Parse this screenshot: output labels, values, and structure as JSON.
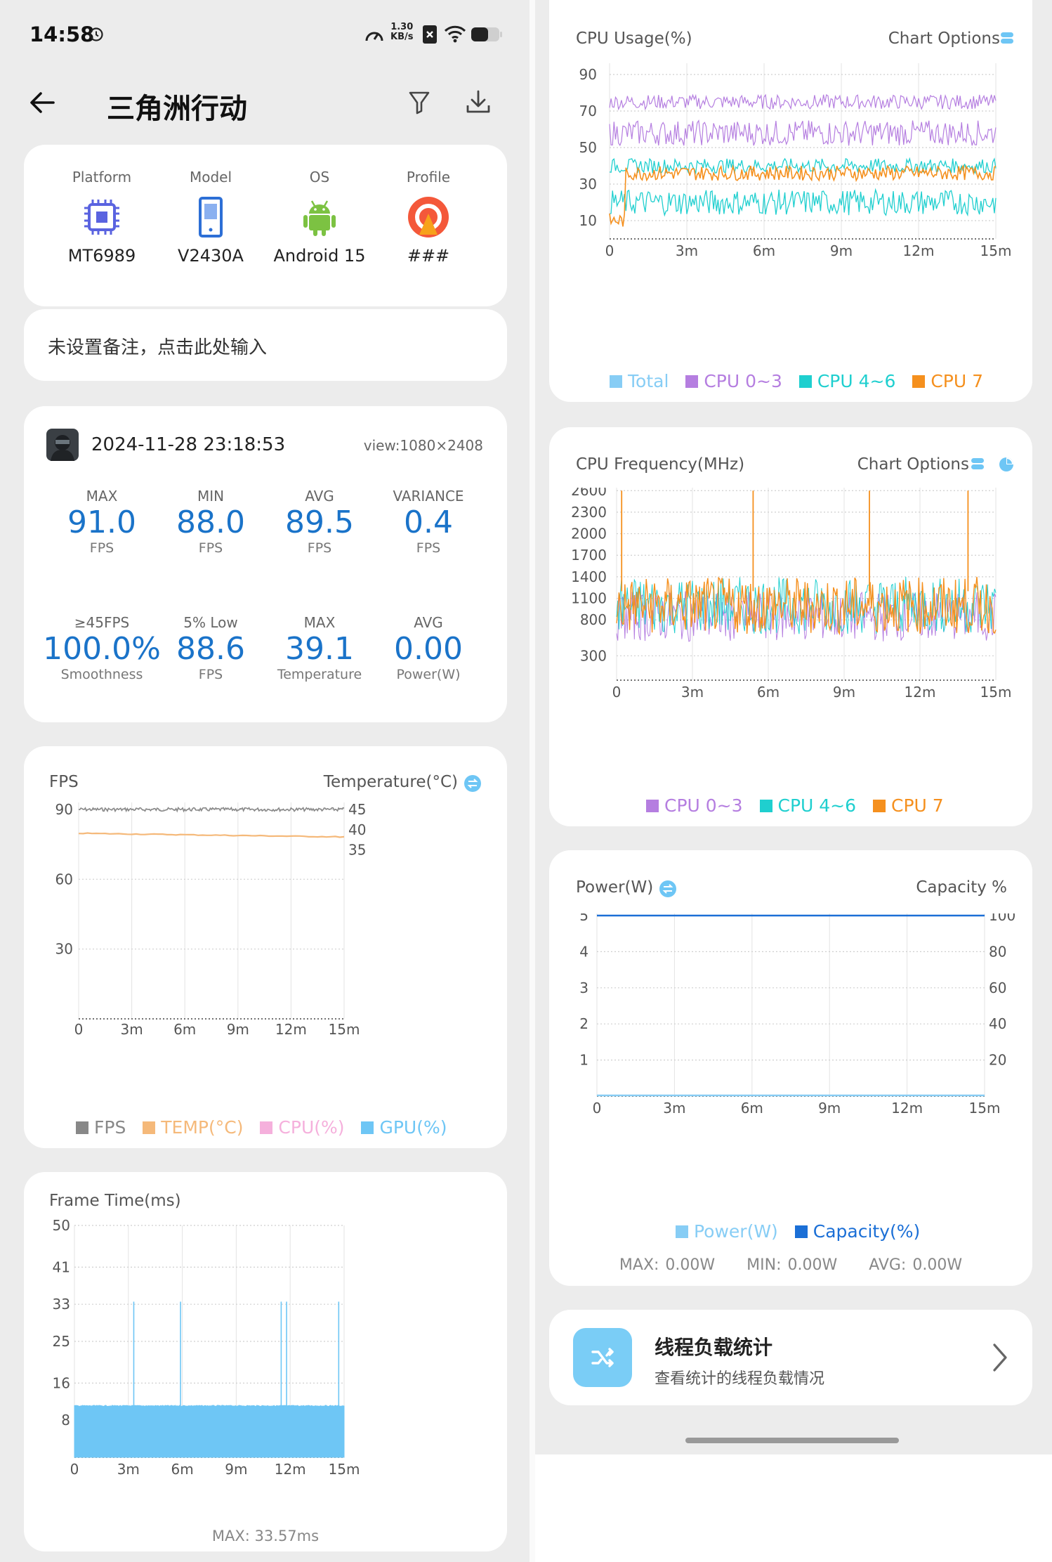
{
  "status_bar": {
    "time": "14:58",
    "net_speed_value": "1.30",
    "net_speed_unit": "KB/s"
  },
  "app_bar": {
    "title": "三角洲行动"
  },
  "device": {
    "items": [
      {
        "label": "Platform",
        "value": "MT6989",
        "icon": "chip-icon"
      },
      {
        "label": "Model",
        "value": "V2430A",
        "icon": "phone-icon"
      },
      {
        "label": "OS",
        "value": "Android 15",
        "icon": "android-icon"
      },
      {
        "label": "Profile",
        "value": "###",
        "icon": "profile-icon"
      }
    ]
  },
  "note": {
    "placeholder": "未设置备注，点击此处输入"
  },
  "session": {
    "datetime": "2024-11-28 23:18:53",
    "view": "view:1080×2408",
    "stats": [
      {
        "label": "MAX",
        "value": "91.0",
        "unit": "FPS"
      },
      {
        "label": "MIN",
        "value": "88.0",
        "unit": "FPS"
      },
      {
        "label": "AVG",
        "value": "89.5",
        "unit": "FPS"
      },
      {
        "label": "VARIANCE",
        "value": "0.4",
        "unit": "FPS"
      },
      {
        "label": "≥45FPS",
        "value": "100.0%",
        "unit": "Smoothness"
      },
      {
        "label": "5% Low",
        "value": "88.6",
        "unit": "FPS"
      },
      {
        "label": "MAX",
        "value": "39.1",
        "unit": "Temperature"
      },
      {
        "label": "AVG",
        "value": "0.00",
        "unit": "Power(W)"
      }
    ]
  },
  "colors": {
    "accent": "#1a73c9",
    "fps": "#888888",
    "temp": "#f5b97a",
    "cpu": "#f5b0dc",
    "gpu": "#6ec6f5",
    "total": "#87cdf5",
    "cpu03": "#b57ee0",
    "cpu46": "#1fcfcf",
    "cpu7": "#f5901e",
    "capacity": "#1b6fd6"
  },
  "fps_chart": {
    "title_left": "FPS",
    "title_right": "Temperature(°C)",
    "legend": [
      "FPS",
      "TEMP(°C)",
      "CPU(%)",
      "GPU(%)"
    ]
  },
  "frame_time": {
    "title": "Frame Time(ms)",
    "footer": "MAX: 33.57ms"
  },
  "cpu_usage": {
    "title": "CPU Usage(%)",
    "options": "Chart Options",
    "legend": [
      "Total",
      "CPU 0~3",
      "CPU 4~6",
      "CPU 7"
    ]
  },
  "cpu_freq": {
    "title": "CPU Frequency(MHz)",
    "options": "Chart Options",
    "legend": [
      "CPU 0~3",
      "CPU 4~6",
      "CPU 7"
    ]
  },
  "power": {
    "title_left": "Power(W)",
    "title_right": "Capacity %",
    "legend": [
      "Power(W)",
      "Capacity(%)"
    ],
    "footer": {
      "max": "MAX: 0.00W",
      "min": "MIN: 0.00W",
      "avg": "AVG: 0.00W"
    }
  },
  "thread": {
    "title": "线程负载统计",
    "subtitle": "查看统计的线程负载情况"
  },
  "chart_data": [
    {
      "type": "line",
      "title": "FPS",
      "x_ticks": [
        "0",
        "3m",
        "6m",
        "9m",
        "12m",
        "15m"
      ],
      "y_ticks": [
        "30",
        "60",
        "90"
      ],
      "y2_ticks": [
        "35",
        "40",
        "45"
      ],
      "series": [
        {
          "name": "FPS",
          "approx_value": 90
        },
        {
          "name": "TEMP(°C)",
          "start": 39.1,
          "end": 38.2
        }
      ]
    },
    {
      "type": "area",
      "title": "Frame Time(ms)",
      "x_ticks": [
        "0",
        "3m",
        "6m",
        "9m",
        "12m",
        "15m"
      ],
      "y_ticks": [
        "8",
        "16",
        "25",
        "33",
        "41",
        "50"
      ],
      "series": [
        {
          "name": "frame_time",
          "approx_value": 11.1,
          "max": 33.57,
          "spikes_at_min": [
            3.3,
            5.9,
            11.5,
            11.8,
            14.7
          ]
        }
      ]
    },
    {
      "type": "line",
      "title": "CPU Usage(%)",
      "x_ticks": [
        "0",
        "3m",
        "6m",
        "9m",
        "12m",
        "15m"
      ],
      "y_ticks": [
        "10",
        "30",
        "50",
        "70",
        "90"
      ],
      "series": [
        {
          "name": "CPU 0~3",
          "upper_band": 75,
          "lower_band": 58
        },
        {
          "name": "CPU 4~6",
          "upper_band": 40,
          "lower_band": 20
        },
        {
          "name": "CPU 7",
          "approx_value": 36
        }
      ]
    },
    {
      "type": "line",
      "title": "CPU Frequency(MHz)",
      "x_ticks": [
        "0",
        "3m",
        "6m",
        "9m",
        "12m",
        "15m"
      ],
      "y_ticks": [
        "300",
        "800",
        "1100",
        "1400",
        "1700",
        "2000",
        "2300",
        "2600"
      ],
      "series": [
        {
          "name": "CPU 0~3",
          "range": [
            500,
            1200
          ]
        },
        {
          "name": "CPU 4~6",
          "range": [
            600,
            1400
          ]
        },
        {
          "name": "CPU 7",
          "range": [
            600,
            1400
          ],
          "peaks_at_min": [
            0.2,
            5.4,
            10.0,
            13.9
          ],
          "peak": 2600
        }
      ]
    },
    {
      "type": "line",
      "title": "Power(W)",
      "x_ticks": [
        "0",
        "3m",
        "6m",
        "9m",
        "12m",
        "15m"
      ],
      "y_ticks": [
        "1",
        "2",
        "3",
        "4",
        "5"
      ],
      "y2_ticks": [
        "20",
        "40",
        "60",
        "80",
        "100"
      ],
      "series": [
        {
          "name": "Power(W)",
          "value": 0
        },
        {
          "name": "Capacity(%)",
          "value": 100
        }
      ]
    }
  ]
}
